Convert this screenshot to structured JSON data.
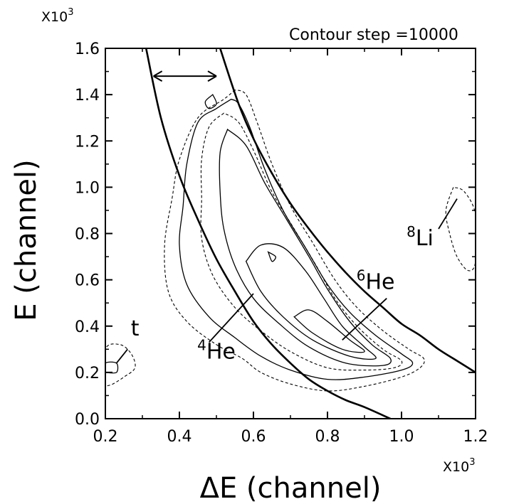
{
  "chart_data": {
    "type": "contour",
    "xlabel": "ΔE (channel)",
    "ylabel": "E (channel)",
    "x_multiplier": "X10",
    "x_multiplier_exp": "3",
    "y_multiplier": "X10",
    "y_multiplier_exp": "3",
    "xlim": [
      0.2,
      1.2
    ],
    "ylim": [
      0.0,
      1.6
    ],
    "x_ticks": [
      "0.2",
      "0.4",
      "0.6",
      "0.8",
      "1.0",
      "1.2"
    ],
    "y_ticks": [
      "0.0",
      "0.2",
      "0.4",
      "0.6",
      "0.8",
      "1.0",
      "1.2",
      "1.4",
      "1.6"
    ],
    "annotation": "Contour step =10000",
    "grid": false,
    "particle_labels": [
      {
        "id": "t",
        "mass": "",
        "symbol": "t",
        "label_at": [
          0.28,
          0.36
        ],
        "line_from": [
          0.26,
          0.3
        ],
        "line_to": [
          0.23,
          0.24
        ]
      },
      {
        "id": "he4",
        "mass": "4",
        "symbol": "He",
        "label_at": [
          0.5,
          0.26
        ],
        "line_from": [
          0.48,
          0.33
        ],
        "line_to": [
          0.6,
          0.54
        ]
      },
      {
        "id": "he6",
        "mass": "6",
        "symbol": "He",
        "label_at": [
          0.93,
          0.56
        ],
        "line_from": [
          0.96,
          0.52
        ],
        "line_to": [
          0.84,
          0.34
        ]
      },
      {
        "id": "li8",
        "mass": "8",
        "symbol": "Li",
        "label_at": [
          1.05,
          0.75
        ],
        "line_from": [
          1.1,
          0.82
        ],
        "line_to": [
          1.15,
          0.95
        ]
      }
    ],
    "boundary_curves": [
      {
        "name": "inner",
        "points": [
          [
            0.31,
            1.6
          ],
          [
            0.35,
            1.3
          ],
          [
            0.4,
            1.05
          ],
          [
            0.45,
            0.86
          ],
          [
            0.5,
            0.69
          ],
          [
            0.55,
            0.55
          ],
          [
            0.6,
            0.42
          ],
          [
            0.65,
            0.32
          ],
          [
            0.7,
            0.24
          ],
          [
            0.75,
            0.17
          ],
          [
            0.8,
            0.12
          ],
          [
            0.85,
            0.08
          ],
          [
            0.9,
            0.05
          ],
          [
            0.97,
            0.0
          ]
        ]
      },
      {
        "name": "outer",
        "points": [
          [
            0.51,
            1.6
          ],
          [
            0.56,
            1.36
          ],
          [
            0.6,
            1.21
          ],
          [
            0.65,
            1.06
          ],
          [
            0.7,
            0.93
          ],
          [
            0.75,
            0.82
          ],
          [
            0.8,
            0.72
          ],
          [
            0.85,
            0.63
          ],
          [
            0.9,
            0.55
          ],
          [
            0.95,
            0.48
          ],
          [
            1.0,
            0.41
          ],
          [
            1.05,
            0.36
          ],
          [
            1.1,
            0.3
          ],
          [
            1.15,
            0.25
          ],
          [
            1.2,
            0.2
          ]
        ]
      }
    ],
    "width_arrow": {
      "from": [
        0.33,
        1.48
      ],
      "to": [
        0.5,
        1.48
      ]
    },
    "contours": [
      {
        "style": "dashed",
        "points": [
          [
            0.55,
            1.42
          ],
          [
            0.52,
            1.38
          ],
          [
            0.45,
            1.3
          ],
          [
            0.4,
            1.12
          ],
          [
            0.38,
            0.95
          ],
          [
            0.36,
            0.75
          ],
          [
            0.37,
            0.55
          ],
          [
            0.42,
            0.42
          ],
          [
            0.5,
            0.32
          ],
          [
            0.57,
            0.26
          ],
          [
            0.62,
            0.2
          ],
          [
            0.7,
            0.15
          ],
          [
            0.8,
            0.12
          ],
          [
            0.9,
            0.14
          ],
          [
            1.0,
            0.18
          ],
          [
            1.05,
            0.22
          ],
          [
            1.06,
            0.26
          ],
          [
            1.02,
            0.3
          ],
          [
            0.95,
            0.38
          ],
          [
            0.88,
            0.48
          ],
          [
            0.82,
            0.6
          ],
          [
            0.76,
            0.76
          ],
          [
            0.7,
            0.92
          ],
          [
            0.65,
            1.1
          ],
          [
            0.61,
            1.28
          ],
          [
            0.58,
            1.4
          ],
          [
            0.55,
            1.42
          ]
        ]
      },
      {
        "style": "solid",
        "points": [
          [
            0.54,
            1.38
          ],
          [
            0.5,
            1.34
          ],
          [
            0.45,
            1.28
          ],
          [
            0.42,
            1.1
          ],
          [
            0.41,
            0.92
          ],
          [
            0.4,
            0.75
          ],
          [
            0.42,
            0.58
          ],
          [
            0.48,
            0.44
          ],
          [
            0.55,
            0.35
          ],
          [
            0.62,
            0.27
          ],
          [
            0.7,
            0.21
          ],
          [
            0.8,
            0.17
          ],
          [
            0.9,
            0.18
          ],
          [
            1.0,
            0.21
          ],
          [
            1.03,
            0.24
          ],
          [
            1.0,
            0.28
          ],
          [
            0.93,
            0.36
          ],
          [
            0.86,
            0.46
          ],
          [
            0.8,
            0.58
          ],
          [
            0.74,
            0.74
          ],
          [
            0.68,
            0.9
          ],
          [
            0.63,
            1.08
          ],
          [
            0.59,
            1.26
          ],
          [
            0.56,
            1.36
          ],
          [
            0.54,
            1.38
          ]
        ]
      },
      {
        "style": "dashed",
        "points": [
          [
            0.52,
            1.32
          ],
          [
            0.48,
            1.26
          ],
          [
            0.46,
            1.12
          ],
          [
            0.46,
            0.95
          ],
          [
            0.46,
            0.78
          ],
          [
            0.49,
            0.62
          ],
          [
            0.55,
            0.48
          ],
          [
            0.62,
            0.38
          ],
          [
            0.7,
            0.29
          ],
          [
            0.8,
            0.22
          ],
          [
            0.9,
            0.21
          ],
          [
            0.98,
            0.22
          ],
          [
            1.0,
            0.25
          ],
          [
            0.95,
            0.3
          ],
          [
            0.88,
            0.4
          ],
          [
            0.82,
            0.52
          ],
          [
            0.77,
            0.66
          ],
          [
            0.71,
            0.82
          ],
          [
            0.65,
            0.98
          ],
          [
            0.6,
            1.16
          ],
          [
            0.56,
            1.28
          ],
          [
            0.52,
            1.32
          ]
        ]
      },
      {
        "style": "solid",
        "points": [
          [
            0.53,
            1.25
          ],
          [
            0.51,
            1.15
          ],
          [
            0.51,
            0.98
          ],
          [
            0.52,
            0.82
          ],
          [
            0.55,
            0.66
          ],
          [
            0.6,
            0.52
          ],
          [
            0.67,
            0.41
          ],
          [
            0.75,
            0.31
          ],
          [
            0.85,
            0.24
          ],
          [
            0.95,
            0.23
          ],
          [
            0.97,
            0.26
          ],
          [
            0.92,
            0.32
          ],
          [
            0.86,
            0.42
          ],
          [
            0.8,
            0.56
          ],
          [
            0.75,
            0.7
          ],
          [
            0.69,
            0.86
          ],
          [
            0.63,
            1.02
          ],
          [
            0.58,
            1.18
          ],
          [
            0.53,
            1.25
          ]
        ]
      },
      {
        "style": "solid",
        "points": [
          [
            0.58,
            0.68
          ],
          [
            0.62,
            0.55
          ],
          [
            0.68,
            0.44
          ],
          [
            0.76,
            0.34
          ],
          [
            0.86,
            0.27
          ],
          [
            0.93,
            0.26
          ],
          [
            0.9,
            0.31
          ],
          [
            0.84,
            0.4
          ],
          [
            0.79,
            0.52
          ],
          [
            0.74,
            0.64
          ],
          [
            0.68,
            0.74
          ],
          [
            0.62,
            0.75
          ],
          [
            0.58,
            0.68
          ]
        ]
      },
      {
        "style": "solid",
        "points": [
          [
            0.71,
            0.44
          ],
          [
            0.76,
            0.37
          ],
          [
            0.84,
            0.3
          ],
          [
            0.9,
            0.29
          ],
          [
            0.86,
            0.34
          ],
          [
            0.8,
            0.42
          ],
          [
            0.75,
            0.47
          ],
          [
            0.71,
            0.44
          ]
        ]
      },
      {
        "style": "solid",
        "points": [
          [
            0.49,
            1.4
          ],
          [
            0.47,
            1.37
          ],
          [
            0.48,
            1.34
          ],
          [
            0.5,
            1.36
          ],
          [
            0.49,
            1.4
          ]
        ]
      },
      {
        "style": "solid",
        "points": [
          [
            0.64,
            0.72
          ],
          [
            0.65,
            0.68
          ],
          [
            0.66,
            0.7
          ],
          [
            0.64,
            0.72
          ]
        ]
      },
      {
        "style": "dashed",
        "points": [
          [
            0.2,
            0.14
          ],
          [
            0.2,
            0.3
          ],
          [
            0.24,
            0.32
          ],
          [
            0.27,
            0.28
          ],
          [
            0.28,
            0.22
          ],
          [
            0.25,
            0.18
          ],
          [
            0.22,
            0.15
          ],
          [
            0.2,
            0.14
          ]
        ]
      },
      {
        "style": "solid",
        "points": [
          [
            0.2,
            0.2
          ],
          [
            0.2,
            0.24
          ],
          [
            0.23,
            0.24
          ],
          [
            0.23,
            0.2
          ],
          [
            0.2,
            0.2
          ]
        ]
      },
      {
        "style": "dashed",
        "points": [
          [
            1.14,
            1.0
          ],
          [
            1.12,
            0.9
          ],
          [
            1.13,
            0.8
          ],
          [
            1.15,
            0.7
          ],
          [
            1.18,
            0.64
          ],
          [
            1.2,
            0.68
          ],
          [
            1.2,
            0.88
          ],
          [
            1.17,
            0.98
          ],
          [
            1.14,
            1.0
          ]
        ]
      }
    ]
  }
}
